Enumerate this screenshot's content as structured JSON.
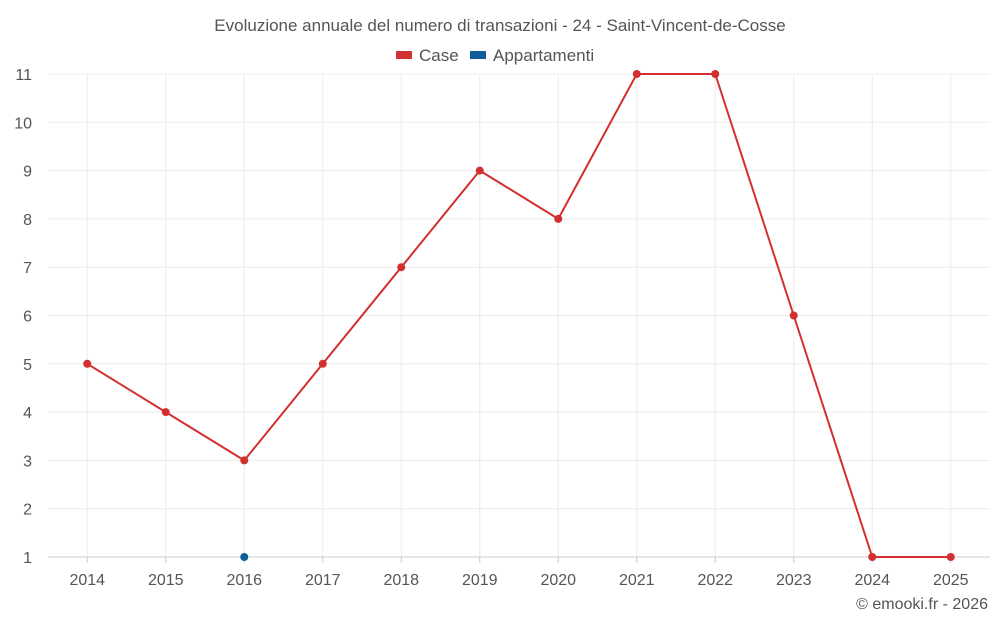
{
  "chart_data": {
    "type": "line",
    "title": "Evoluzione annuale del numero di transazioni - 24 - Saint-Vincent-de-Cosse",
    "xlabel": "",
    "ylabel": "",
    "categories": [
      "2014",
      "2015",
      "2016",
      "2017",
      "2018",
      "2019",
      "2020",
      "2021",
      "2022",
      "2023",
      "2024",
      "2025"
    ],
    "ylim": [
      1,
      11
    ],
    "yticks": [
      "1",
      "2",
      "3",
      "4",
      "5",
      "6",
      "7",
      "8",
      "9",
      "10",
      "11"
    ],
    "grid": true,
    "legend_position": "top-center",
    "series": [
      {
        "name": "Case",
        "color": "#d32f2f",
        "values": [
          5,
          4,
          3,
          5,
          7,
          9,
          8,
          11,
          11,
          6,
          1,
          1
        ]
      },
      {
        "name": "Appartamenti",
        "color": "#0d5f99",
        "values": [
          null,
          null,
          1,
          null,
          null,
          null,
          null,
          null,
          null,
          null,
          null,
          null
        ]
      }
    ]
  },
  "credit": "© emooki.fr - 2026"
}
